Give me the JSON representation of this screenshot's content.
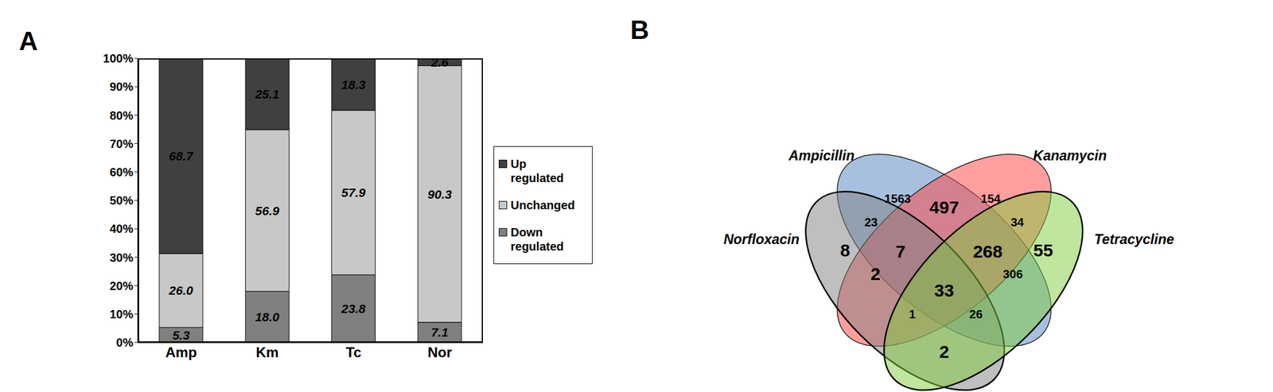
{
  "chart_data": {
    "type": "bar",
    "panel_label": "A",
    "stacked": true,
    "data_labels": true,
    "legend": "right",
    "categories": [
      "Amp",
      "Km",
      "Tc",
      "Nor"
    ],
    "series": [
      {
        "name": "Up regulated",
        "color": "#404040",
        "values": [
          68.7,
          25.1,
          18.3,
          2.6
        ],
        "value_labels": [
          "68.7",
          "25.1",
          "18.3",
          "2.6"
        ]
      },
      {
        "name": "Unchanged",
        "color": "#c8c8c8",
        "values": [
          26.0,
          56.9,
          57.9,
          90.3
        ],
        "value_labels": [
          "26.0",
          "56.9",
          "57.9",
          "90.3"
        ]
      },
      {
        "name": "Down regulated",
        "color": "#808080",
        "values": [
          5.3,
          18.0,
          23.8,
          7.1
        ],
        "value_labels": [
          "5.3",
          "18.0",
          "23.8",
          "7.1"
        ]
      }
    ],
    "ylim": [
      0,
      100
    ],
    "yticks": [
      {
        "value": 0,
        "label": "0%"
      },
      {
        "value": 10,
        "label": "10%"
      },
      {
        "value": 20,
        "label": "20%"
      },
      {
        "value": 30,
        "label": "30%"
      },
      {
        "value": 40,
        "label": "40%"
      },
      {
        "value": 50,
        "label": "50%"
      },
      {
        "value": 60,
        "label": "60%"
      },
      {
        "value": 70,
        "label": "70%"
      },
      {
        "value": 80,
        "label": "80%"
      },
      {
        "value": 90,
        "label": "90%"
      },
      {
        "value": 100,
        "label": "100%"
      }
    ]
  },
  "venn": {
    "panel_label": "B",
    "sets": [
      {
        "name": "Ampicillin",
        "color": "#4f81bd"
      },
      {
        "name": "Kanamycin",
        "color": "#ff4040"
      },
      {
        "name": "Norfloxacin",
        "color": "#808080"
      },
      {
        "name": "Tetracycline",
        "color": "#80cc40"
      }
    ],
    "regions": [
      {
        "sets": [
          "Ampicillin"
        ],
        "value": 1563
      },
      {
        "sets": [
          "Kanamycin"
        ],
        "value": 154
      },
      {
        "sets": [
          "Norfloxacin"
        ],
        "value": 8
      },
      {
        "sets": [
          "Tetracycline"
        ],
        "value": 55
      },
      {
        "sets": [
          "Ampicillin",
          "Kanamycin"
        ],
        "value": 497
      },
      {
        "sets": [
          "Ampicillin",
          "Norfloxacin"
        ],
        "value": 23
      },
      {
        "sets": [
          "Kanamycin",
          "Tetracycline"
        ],
        "value": 34
      },
      {
        "sets": [
          "Kanamycin",
          "Norfloxacin"
        ],
        "value": 2
      },
      {
        "sets": [
          "Ampicillin",
          "Tetracycline"
        ],
        "value": 306
      },
      {
        "sets": [
          "Norfloxacin",
          "Tetracycline"
        ],
        "value": 2
      },
      {
        "sets": [
          "Ampicillin",
          "Kanamycin",
          "Norfloxacin"
        ],
        "value": 7
      },
      {
        "sets": [
          "Ampicillin",
          "Kanamycin",
          "Tetracycline"
        ],
        "value": 268
      },
      {
        "sets": [
          "Kanamycin",
          "Norfloxacin",
          "Tetracycline"
        ],
        "value": 1
      },
      {
        "sets": [
          "Ampicillin",
          "Norfloxacin",
          "Tetracycline"
        ],
        "value": 26
      },
      {
        "sets": [
          "Ampicillin",
          "Kanamycin",
          "Norfloxacin",
          "Tetracycline"
        ],
        "value": 33
      }
    ]
  }
}
